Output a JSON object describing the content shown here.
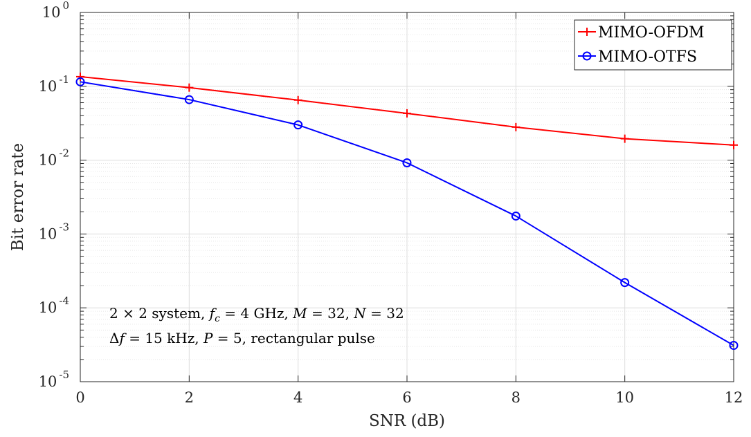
{
  "chart_data": {
    "type": "line",
    "title": "",
    "xlabel": "SNR (dB)",
    "ylabel": "Bit error rate",
    "xlim": [
      0,
      12
    ],
    "ylim": [
      1e-05,
      1
    ],
    "yscale": "log",
    "grid": true,
    "legend_position": "top-right",
    "x": [
      0,
      2,
      4,
      6,
      8,
      10,
      12
    ],
    "x_tick_labels": [
      "0",
      "2",
      "4",
      "6",
      "8",
      "10",
      "12"
    ],
    "y_tick_labels": [
      {
        "base": "10",
        "exp": "0"
      },
      {
        "base": "10",
        "exp": "-1"
      },
      {
        "base": "10",
        "exp": "-2"
      },
      {
        "base": "10",
        "exp": "-3"
      },
      {
        "base": "10",
        "exp": "-4"
      },
      {
        "base": "10",
        "exp": "-5"
      }
    ],
    "series": [
      {
        "name": "MIMO-OFDM",
        "color": "#ff0000",
        "marker": "plus",
        "values": [
          0.135,
          0.096,
          0.065,
          0.043,
          0.028,
          0.0195,
          0.016
        ]
      },
      {
        "name": "MIMO-OTFS",
        "color": "#0000ff",
        "marker": "circle",
        "values": [
          0.115,
          0.066,
          0.03,
          0.0092,
          0.00175,
          0.00022,
          3.1e-05
        ]
      }
    ],
    "annotation": {
      "line1": {
        "a": "2 × 2 system, ",
        "b": "f",
        "b_sub": "c",
        "c": " = 4 GHz, ",
        "d": "M",
        "e": " = 32, ",
        "f": "N",
        "g": " = 32"
      },
      "line2": {
        "a": "Δ",
        "b": "f",
        "c": " = 15 kHz, ",
        "d": "P",
        "e": " = 5, rectangular pulse"
      }
    }
  }
}
